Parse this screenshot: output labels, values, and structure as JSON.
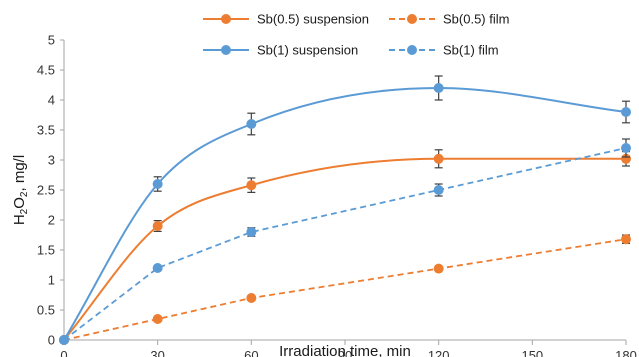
{
  "chart_data": {
    "type": "line",
    "xlabel": "Irradiation time, min",
    "ylabel_parts": [
      "H",
      "2",
      "O",
      "2",
      ", mg/l"
    ],
    "x_ticks": [
      0,
      30,
      60,
      90,
      120,
      150,
      180
    ],
    "y_ticks": [
      0,
      0.5,
      1,
      1.5,
      2,
      2.5,
      3,
      3.5,
      4,
      4.5,
      5
    ],
    "xlim": [
      0,
      180
    ],
    "ylim": [
      0,
      5
    ],
    "grid": false,
    "legend_position": "top",
    "series": [
      {
        "name": "Sb(0.5) suspension",
        "color": "#ED7D31",
        "style": "solid",
        "x": [
          0,
          30,
          60,
          120,
          180
        ],
        "y": [
          0,
          1.9,
          2.58,
          3.02,
          3.02
        ],
        "err": [
          0,
          0.09,
          0.12,
          0.15,
          0.12
        ]
      },
      {
        "name": "Sb(0.5) film",
        "color": "#ED7D31",
        "style": "dashed",
        "x": [
          0,
          30,
          60,
          120,
          180
        ],
        "y": [
          0,
          0.35,
          0.7,
          1.19,
          1.68
        ],
        "err": [
          0,
          0,
          0,
          0,
          0.07
        ]
      },
      {
        "name": "Sb(1) suspension",
        "color": "#5B9BD5",
        "style": "solid",
        "x": [
          0,
          30,
          60,
          120,
          180
        ],
        "y": [
          0,
          2.6,
          3.6,
          4.2,
          3.8
        ],
        "err": [
          0,
          0.12,
          0.18,
          0.2,
          0.18
        ]
      },
      {
        "name": "Sb(1) film",
        "color": "#5B9BD5",
        "style": "dashed",
        "x": [
          0,
          30,
          60,
          120,
          180
        ],
        "y": [
          0,
          1.2,
          1.8,
          2.5,
          3.2
        ],
        "err": [
          0,
          0,
          0.07,
          0.1,
          0.15
        ]
      }
    ]
  }
}
